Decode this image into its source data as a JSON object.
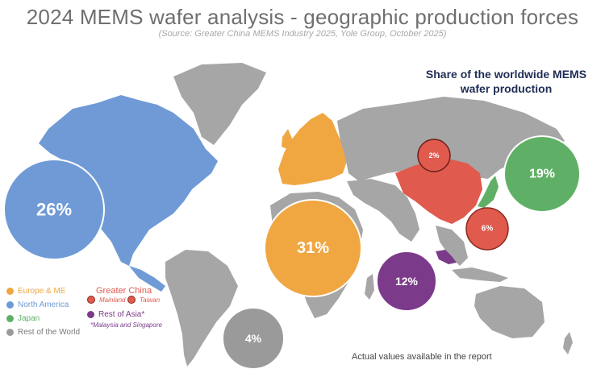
{
  "title": "2024 MEMS wafer analysis - geographic production forces",
  "source": "(Source: Greater China MEMS Industry 2025, Yole Group, October 2025)",
  "share_title": [
    "Share of the worldwide MEMS",
    "wafer production"
  ],
  "regions": [
    {
      "id": "europe-me",
      "label": "Europe & ME",
      "share": "31%",
      "color": "#f0a742"
    },
    {
      "id": "north-america",
      "label": "North America",
      "share": "26%",
      "color": "#6f9ad6"
    },
    {
      "id": "japan",
      "label": "Japan",
      "share": "19%",
      "color": "#5fb066"
    },
    {
      "id": "rest-of-asia",
      "label": "Rest of Asia*",
      "share": "12%",
      "color": "#7b3a8a"
    },
    {
      "id": "taiwan",
      "label": "Taiwan",
      "share": "6%",
      "color": "#e05a4e"
    },
    {
      "id": "rest-of-world",
      "label": "Rest of the World",
      "share": "4%",
      "color": "#9a9a9a"
    },
    {
      "id": "mainland",
      "label": "Mainland",
      "share": "2%",
      "color": "#e05a4e"
    }
  ],
  "legend": {
    "europe": "Europe & ME",
    "north_america": "North America",
    "japan": "Japan",
    "rest_world": "Rest of the World",
    "greater_china": "Greater China",
    "mainland": "Mainland",
    "taiwan": "Taiwan",
    "rest_asia": "Rest of Asia*",
    "rest_asia_note": "*Malaysia and Singapore"
  },
  "footer": "Actual values available in the report",
  "colors": {
    "land_gray": "#a6a6a6",
    "north_america": "#6f9ad6",
    "europe": "#f0a742",
    "china": "#e05a4e",
    "japan": "#5fb066",
    "rest_asia": "#7b3a8a"
  }
}
